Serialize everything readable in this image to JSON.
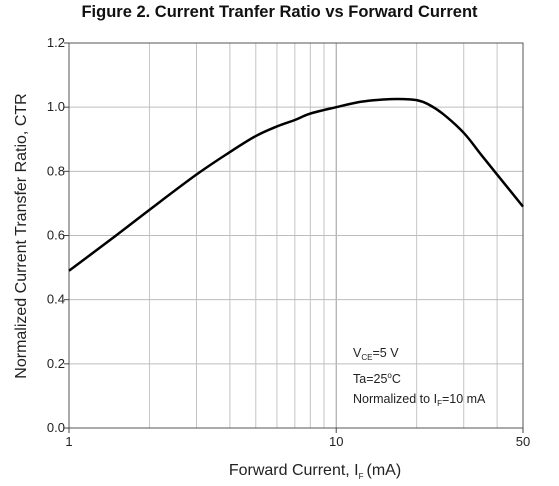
{
  "chart_data": {
    "type": "line",
    "title": "Figure 2. Current Tranfer Ratio vs Forward Current",
    "xlabel": "Forward Current, I",
    "xlabel_sub": "F",
    "xlabel_unit": "(mA)",
    "ylabel": "Normalized Current Transfer Ratio, CTR",
    "xscale": "log",
    "xlim": [
      1,
      50
    ],
    "ylim": [
      0.0,
      1.2
    ],
    "grid": true,
    "x_ticks": [
      1,
      10,
      50
    ],
    "x_tick_labels": [
      "1",
      "10",
      "50"
    ],
    "y_ticks": [
      0.0,
      0.2,
      0.4,
      0.6,
      0.8,
      1.0,
      1.2
    ],
    "y_tick_labels": [
      "0.0",
      "0.2",
      "0.4",
      "0.6",
      "0.8",
      "1.0",
      "1.2"
    ],
    "series": [
      {
        "x": [
          1,
          1.5,
          2,
          3,
          4,
          5,
          6,
          7,
          8,
          10,
          12,
          14,
          16,
          18,
          20,
          22,
          25,
          30,
          35,
          40,
          50
        ],
        "y": [
          0.49,
          0.6,
          0.68,
          0.79,
          0.86,
          0.91,
          0.94,
          0.96,
          0.98,
          1.0,
          1.015,
          1.022,
          1.025,
          1.025,
          1.022,
          1.01,
          0.98,
          0.92,
          0.85,
          0.79,
          0.69
        ],
        "color": "#000000"
      }
    ],
    "annotations": {
      "line1_main": "V",
      "line1_sub": "CE",
      "line1_rest": "=5 V",
      "line2_main": "Ta=25",
      "line2_sup": "o",
      "line2_rest": "C",
      "line3_main": "Normalized to I",
      "line3_sub": "F",
      "line3_rest": "=10 mA"
    }
  }
}
